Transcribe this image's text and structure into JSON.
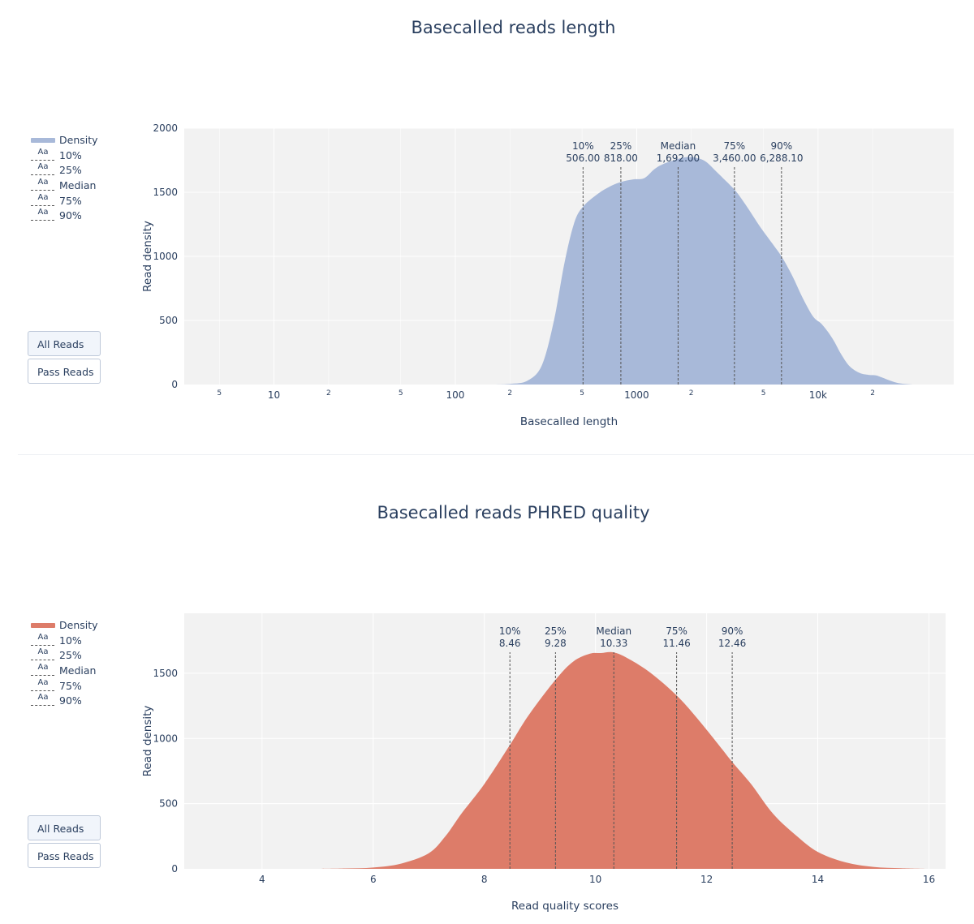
{
  "colors": {
    "plot_bg": "#f2f2f2",
    "grid": "#ffffff",
    "length_fill": "#a8b9d9",
    "quality_fill": "#dd7c69",
    "dash": "#555555"
  },
  "chart_data": [
    {
      "type": "area",
      "title": "Basecalled reads length",
      "xlabel": "Basecalled length",
      "ylabel": "Read density",
      "xscale": "log",
      "xlim": [
        3.2,
        56000
      ],
      "ylim": [
        0,
        2000
      ],
      "yticks": [
        0,
        500,
        1000,
        1500,
        2000
      ],
      "xticks_major": [
        {
          "v": 10,
          "label": "10"
        },
        {
          "v": 100,
          "label": "100"
        },
        {
          "v": 1000,
          "label": "1000"
        },
        {
          "v": 10000,
          "label": "10k"
        }
      ],
      "xticks_minor": [
        {
          "v": 5,
          "label": "5"
        },
        {
          "v": 20,
          "label": "2"
        },
        {
          "v": 50,
          "label": "5"
        },
        {
          "v": 200,
          "label": "2"
        },
        {
          "v": 500,
          "label": "5"
        },
        {
          "v": 2000,
          "label": "2"
        },
        {
          "v": 5000,
          "label": "5"
        },
        {
          "v": 20000,
          "label": "2"
        }
      ],
      "legend": [
        "Density",
        "10%",
        "25%",
        "Median",
        "75%",
        "90%"
      ],
      "series": [
        {
          "name": "Density",
          "x": [
            150,
            200,
            250,
            300,
            350,
            400,
            450,
            500,
            600,
            700,
            818,
            950,
            1100,
            1250,
            1400,
            1692,
            1900,
            2100,
            2400,
            2800,
            3460,
            4000,
            4800,
            5600,
            6288,
            7200,
            8200,
            9400,
            10500,
            12000,
            13500,
            15000,
            17000,
            19000,
            21000,
            24000,
            27000,
            30000,
            34000
          ],
          "y": [
            0,
            5,
            30,
            150,
            500,
            950,
            1250,
            1380,
            1480,
            1540,
            1580,
            1600,
            1610,
            1680,
            1720,
            1760,
            1775,
            1770,
            1740,
            1650,
            1520,
            1400,
            1230,
            1100,
            1000,
            850,
            680,
            530,
            470,
            360,
            230,
            140,
            90,
            75,
            70,
            40,
            15,
            5,
            0
          ]
        }
      ],
      "quantiles": [
        {
          "label": "10%",
          "value": 506.0,
          "text": "506.00",
          "y": 1380
        },
        {
          "label": "25%",
          "value": 818.0,
          "text": "818.00",
          "y": 1580
        },
        {
          "label": "Median",
          "value": 1692.0,
          "text": "1,692.00",
          "y": 1760
        },
        {
          "label": "75%",
          "value": 3460.0,
          "text": "3,460.00",
          "y": 1520
        },
        {
          "label": "90%",
          "value": 6288.1,
          "text": "6,288.10",
          "y": 1000
        }
      ]
    },
    {
      "type": "area",
      "title": "Basecalled reads PHRED quality",
      "xlabel": "Read quality scores",
      "ylabel": "Read density",
      "xscale": "linear",
      "xlim": [
        2.6,
        16.3
      ],
      "ylim": [
        0,
        1960
      ],
      "yticks": [
        0,
        500,
        1000,
        1500
      ],
      "xticks_major": [
        {
          "v": 4,
          "label": "4"
        },
        {
          "v": 6,
          "label": "6"
        },
        {
          "v": 8,
          "label": "8"
        },
        {
          "v": 10,
          "label": "10"
        },
        {
          "v": 12,
          "label": "12"
        },
        {
          "v": 14,
          "label": "14"
        },
        {
          "v": 16,
          "label": "16"
        }
      ],
      "xticks_minor": [],
      "legend": [
        "Density",
        "10%",
        "25%",
        "Median",
        "75%",
        "90%"
      ],
      "series": [
        {
          "name": "Density",
          "x": [
            5.0,
            5.5,
            6.0,
            6.5,
            7.0,
            7.3,
            7.6,
            8.0,
            8.46,
            8.8,
            9.28,
            9.6,
            9.9,
            10.1,
            10.33,
            10.6,
            11.0,
            11.46,
            11.8,
            12.2,
            12.46,
            12.8,
            13.2,
            13.6,
            14.0,
            14.5,
            15.0,
            15.5,
            16.0
          ],
          "y": [
            0,
            3,
            10,
            40,
            120,
            250,
            430,
            650,
            950,
            1180,
            1450,
            1590,
            1650,
            1655,
            1660,
            1610,
            1500,
            1330,
            1170,
            960,
            820,
            650,
            420,
            260,
            130,
            50,
            15,
            5,
            0
          ]
        }
      ],
      "quantiles": [
        {
          "label": "10%",
          "value": 8.46,
          "text": "8.46",
          "y": 950
        },
        {
          "label": "25%",
          "value": 9.28,
          "text": "9.28",
          "y": 1450
        },
        {
          "label": "Median",
          "value": 10.33,
          "text": "10.33",
          "y": 1660
        },
        {
          "label": "75%",
          "value": 11.46,
          "text": "11.46",
          "y": 1330
        },
        {
          "label": "90%",
          "value": 12.46,
          "text": "12.46",
          "y": 820
        }
      ]
    }
  ],
  "buttons": {
    "all_reads": "All Reads",
    "pass_reads": "Pass Reads"
  },
  "legend_aa": "Aa"
}
